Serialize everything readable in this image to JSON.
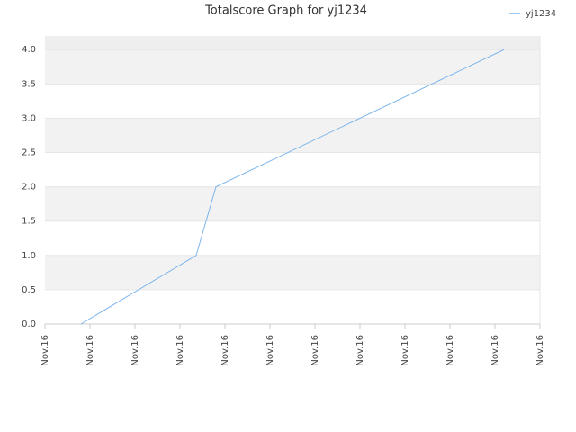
{
  "chart_data": {
    "type": "line",
    "title": "Totalscore Graph for yj1234",
    "x": [
      0.8,
      3.36,
      3.8,
      10.2
    ],
    "series": [
      {
        "name": "yj1234",
        "color": "#7cb5ec",
        "values": [
          0,
          1,
          2,
          4
        ]
      }
    ],
    "xlim": [
      0,
      11
    ],
    "xticks": [
      {
        "value": 0,
        "label": "Nov.16"
      },
      {
        "value": 1,
        "label": "Nov.16"
      },
      {
        "value": 2,
        "label": "Nov.16"
      },
      {
        "value": 3,
        "label": "Nov.16"
      },
      {
        "value": 4,
        "label": "Nov.16"
      },
      {
        "value": 5,
        "label": "Nov.16"
      },
      {
        "value": 6,
        "label": "Nov.16"
      },
      {
        "value": 7,
        "label": "Nov.16"
      },
      {
        "value": 8,
        "label": "Nov.16"
      },
      {
        "value": 9,
        "label": "Nov.16"
      },
      {
        "value": 10,
        "label": "Nov.16"
      },
      {
        "value": 11,
        "label": "Nov.16"
      }
    ],
    "ylim": [
      0,
      4.2
    ],
    "yticks": [
      {
        "value": 0,
        "label": "0.0"
      },
      0.5,
      {
        "value": 1,
        "label": "1.0"
      },
      1.5,
      {
        "value": 2,
        "label": "2.0"
      },
      2.5,
      {
        "value": 3,
        "label": "3.0"
      },
      3.5,
      {
        "value": 4,
        "label": "4.0"
      }
    ],
    "grid": true,
    "legend": "top-right"
  }
}
